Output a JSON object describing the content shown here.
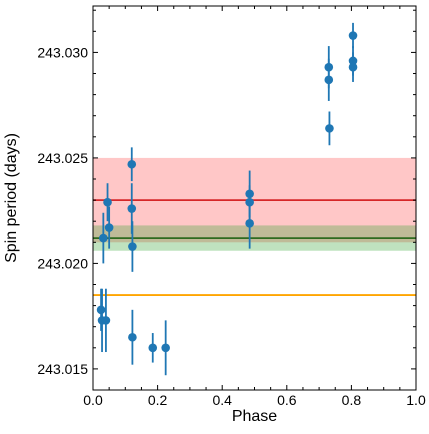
{
  "chart_data": {
    "type": "scatter",
    "xlabel": "Phase",
    "ylabel": "Spin period (days)",
    "xlim": [
      0.0,
      1.0
    ],
    "ylim": [
      243.014,
      243.0322
    ],
    "x_ticks": [
      0.0,
      0.2,
      0.4,
      0.6,
      0.8,
      1.0
    ],
    "x_tick_labels": [
      "0.0",
      "0.2",
      "0.4",
      "0.6",
      "0.8",
      "1.0"
    ],
    "y_ticks": [
      243.015,
      243.02,
      243.025,
      243.03
    ],
    "y_tick_labels": [
      "243.015",
      "243.020",
      "243.025",
      "243.030"
    ],
    "grid": false,
    "bands": [
      {
        "center": 243.023,
        "low": 243.021,
        "high": 243.025,
        "line_color": "#d62728",
        "fill_color": "#ff0000",
        "fill_opacity": 0.22
      },
      {
        "center": 243.0212,
        "low": 243.0206,
        "high": 243.0218,
        "line_color": "#2e6b1f",
        "fill_color": "#2ca02c",
        "fill_opacity": 0.3
      },
      {
        "center": 243.0185,
        "low": null,
        "high": null,
        "line_color": "#ffa500",
        "fill_color": null,
        "fill_opacity": 0
      }
    ],
    "series": [
      {
        "color": "#1f77b4",
        "points": [
          {
            "x": 0.025,
            "y": 243.0178,
            "yerr": 0.001
          },
          {
            "x": 0.028,
            "y": 243.0173,
            "yerr": 0.0015
          },
          {
            "x": 0.032,
            "y": 243.0212,
            "yerr": 0.0012
          },
          {
            "x": 0.04,
            "y": 243.0173,
            "yerr": 0.0015
          },
          {
            "x": 0.045,
            "y": 243.0229,
            "yerr": 0.0009
          },
          {
            "x": 0.05,
            "y": 243.0217,
            "yerr": 0.001
          },
          {
            "x": 0.12,
            "y": 243.0247,
            "yerr": 0.0008
          },
          {
            "x": 0.12,
            "y": 243.0226,
            "yerr": 0.0012
          },
          {
            "x": 0.122,
            "y": 243.0208,
            "yerr": 0.0012
          },
          {
            "x": 0.122,
            "y": 243.0165,
            "yerr": 0.0013
          },
          {
            "x": 0.185,
            "y": 243.016,
            "yerr": 0.0007
          },
          {
            "x": 0.225,
            "y": 243.016,
            "yerr": 0.0013
          },
          {
            "x": 0.485,
            "y": 243.0233,
            "yerr": 0.0011
          },
          {
            "x": 0.485,
            "y": 243.0229,
            "yerr": 0.0008
          },
          {
            "x": 0.485,
            "y": 243.0219,
            "yerr": 0.0012
          },
          {
            "x": 0.73,
            "y": 243.0293,
            "yerr": 0.001
          },
          {
            "x": 0.73,
            "y": 243.0287,
            "yerr": 0.001
          },
          {
            "x": 0.732,
            "y": 243.0264,
            "yerr": 0.0008
          },
          {
            "x": 0.805,
            "y": 243.0308,
            "yerr": 0.0006
          },
          {
            "x": 0.805,
            "y": 243.0296,
            "yerr": 0.0007
          },
          {
            "x": 0.805,
            "y": 243.0293,
            "yerr": 0.0007
          }
        ]
      }
    ]
  }
}
